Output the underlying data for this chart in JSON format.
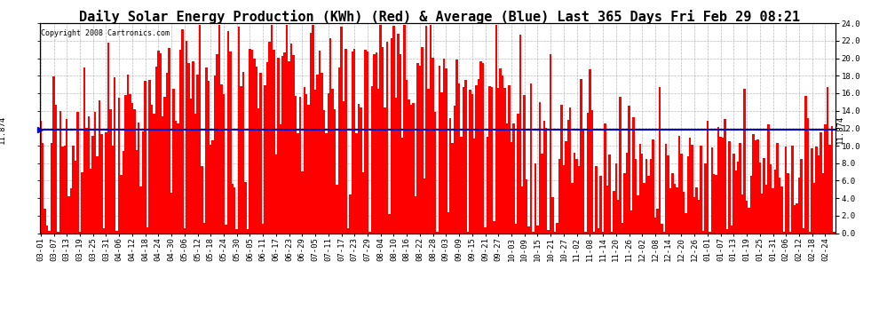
{
  "title": "Daily Solar Energy Production (KWh) (Red) & Average (Blue) Last 365 Days Fri Feb 29 08:21",
  "copyright_text": "Copyright 2008 Cartronics.com",
  "average_value": 11.874,
  "average_label": "11.874",
  "ylim": [
    0,
    24.0
  ],
  "yticks": [
    0.0,
    2.0,
    4.0,
    6.0,
    8.0,
    10.0,
    12.0,
    14.0,
    16.0,
    18.0,
    20.0,
    22.0,
    24.0
  ],
  "bar_color": "#ff0000",
  "avg_line_color": "#0000cc",
  "background_color": "#ffffff",
  "grid_color": "#aaaaaa",
  "title_fontsize": 11,
  "tick_fontsize": 6.5,
  "copyright_fontsize": 6,
  "x_tick_labels": [
    "03-01",
    "03-07",
    "03-13",
    "03-19",
    "03-25",
    "03-31",
    "04-06",
    "04-12",
    "04-18",
    "04-24",
    "04-30",
    "05-06",
    "05-12",
    "05-18",
    "05-24",
    "05-30",
    "06-05",
    "06-11",
    "06-17",
    "06-23",
    "06-29",
    "07-05",
    "07-11",
    "07-17",
    "07-23",
    "07-29",
    "08-04",
    "08-10",
    "08-16",
    "08-22",
    "08-28",
    "09-03",
    "09-09",
    "09-15",
    "09-21",
    "09-27",
    "10-03",
    "10-09",
    "10-15",
    "10-21",
    "10-27",
    "11-02",
    "11-08",
    "11-14",
    "11-20",
    "11-26",
    "12-02",
    "12-08",
    "12-14",
    "12-20",
    "12-26",
    "01-01",
    "01-07",
    "01-13",
    "01-19",
    "01-25",
    "01-31",
    "02-06",
    "02-12",
    "02-18",
    "02-24"
  ],
  "x_tick_positions": [
    0,
    6,
    12,
    18,
    24,
    30,
    36,
    42,
    48,
    54,
    60,
    66,
    72,
    78,
    84,
    90,
    96,
    102,
    108,
    114,
    120,
    126,
    132,
    138,
    144,
    150,
    156,
    162,
    168,
    174,
    180,
    186,
    192,
    198,
    204,
    210,
    216,
    222,
    228,
    234,
    240,
    246,
    252,
    258,
    264,
    270,
    276,
    282,
    288,
    294,
    300,
    306,
    312,
    318,
    324,
    330,
    336,
    342,
    348,
    354,
    360
  ],
  "seed": 42
}
